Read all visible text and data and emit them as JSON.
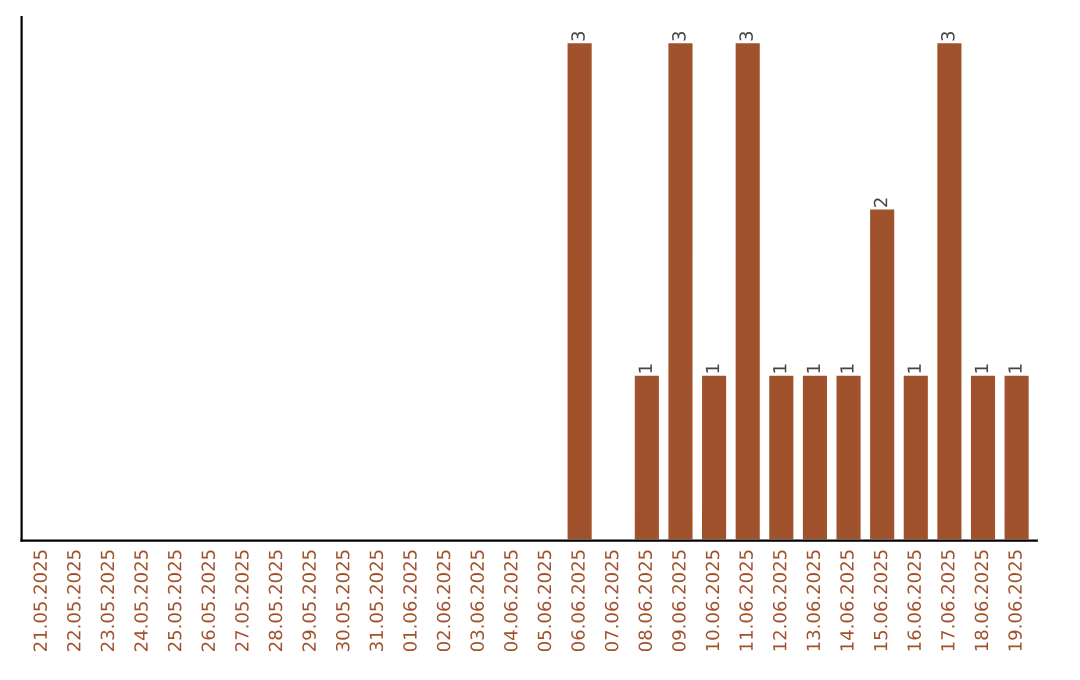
{
  "chart_data": {
    "type": "bar",
    "categories": [
      "21.05.2025",
      "22.05.2025",
      "23.05.2025",
      "24.05.2025",
      "25.05.2025",
      "26.05.2025",
      "27.05.2025",
      "28.05.2025",
      "29.05.2025",
      "30.05.2025",
      "31.05.2025",
      "01.06.2025",
      "02.06.2025",
      "03.06.2025",
      "04.06.2025",
      "05.06.2025",
      "06.06.2025",
      "07.06.2025",
      "08.06.2025",
      "09.06.2025",
      "10.06.2025",
      "11.06.2025",
      "12.06.2025",
      "13.06.2025",
      "14.06.2025",
      "15.06.2025",
      "16.06.2025",
      "17.06.2025",
      "18.06.2025",
      "19.06.2025"
    ],
    "values": [
      null,
      null,
      null,
      null,
      null,
      null,
      null,
      null,
      null,
      null,
      null,
      null,
      null,
      null,
      null,
      null,
      3,
      null,
      1,
      3,
      1,
      3,
      1,
      1,
      1,
      2,
      1,
      3,
      1,
      1
    ],
    "data_labels": true,
    "color": "#a0522d",
    "tick_labels": "x",
    "grid": false,
    "legend": false
  }
}
